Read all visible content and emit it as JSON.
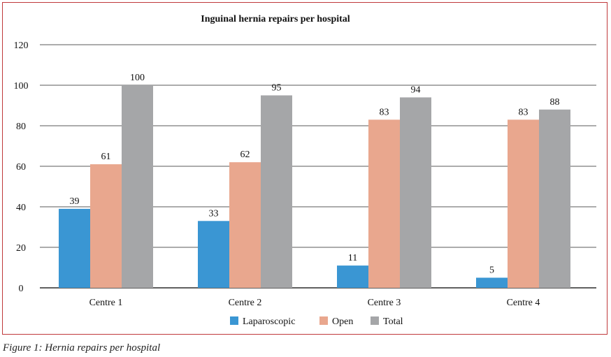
{
  "chart_data": {
    "type": "bar",
    "title": "Inguinal hernia repairs per hospital",
    "categories": [
      "Centre 1",
      "Centre 2",
      "Centre 3",
      "Centre 4"
    ],
    "series": [
      {
        "name": "Laparoscopic",
        "color": "#3a96d3",
        "values": [
          39,
          33,
          11,
          5
        ]
      },
      {
        "name": "Open",
        "color": "#e9a78e",
        "values": [
          61,
          62,
          83,
          83
        ]
      },
      {
        "name": "Total",
        "color": "#a5a6a8",
        "values": [
          100,
          95,
          94,
          88
        ]
      }
    ],
    "ylim": [
      0,
      120
    ],
    "yticks": [
      0,
      20,
      40,
      60,
      80,
      100,
      120
    ],
    "xlabel": "",
    "ylabel": "",
    "grid": true,
    "legend": "bottom"
  },
  "caption": "Figure 1: Hernia repairs per hospital"
}
